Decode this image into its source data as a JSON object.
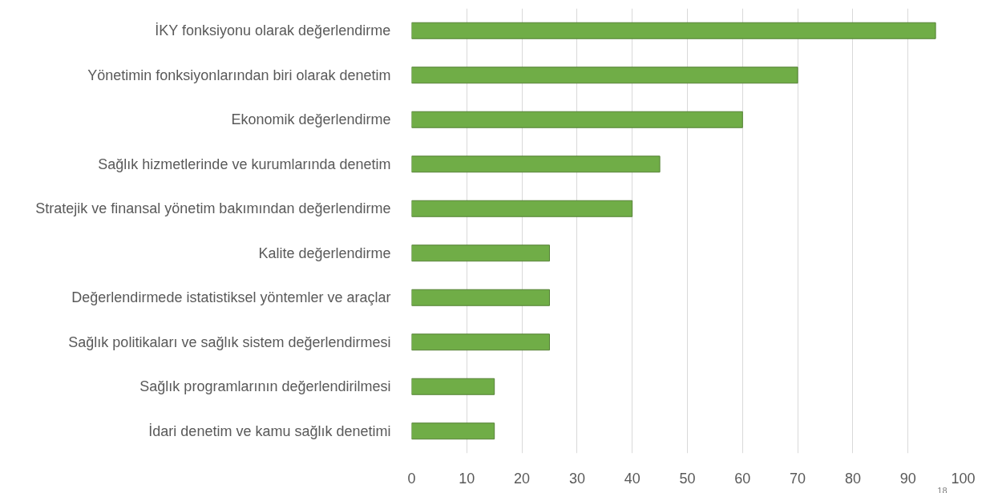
{
  "chart_data": {
    "type": "bar",
    "orientation": "horizontal",
    "categories": [
      "İKY fonksiyonu olarak değerlendirme",
      "Yönetimin fonksiyonlarından biri olarak denetim",
      "Ekonomik değerlendirme",
      "Sağlık hizmetlerinde ve kurumlarında denetim",
      "Stratejik ve finansal yönetim bakımından değerlendirme",
      "Kalite değerlendirme",
      "Değerlendirmede istatistiksel yöntemler ve araçlar",
      "Sağlık politikaları ve sağlık sistem değerlendirmesi",
      "Sağlık programlarının değerlendirilmesi",
      "İdari denetim ve kamu sağlık denetimi"
    ],
    "values": [
      95,
      70,
      60,
      45,
      40,
      25,
      25,
      25,
      15,
      15
    ],
    "color": "#70ad47",
    "xlim": [
      0,
      100
    ],
    "xticks": [
      0,
      10,
      20,
      30,
      40,
      50,
      60,
      70,
      80,
      90,
      100
    ],
    "grid": "x",
    "annotations": [
      "18"
    ]
  }
}
